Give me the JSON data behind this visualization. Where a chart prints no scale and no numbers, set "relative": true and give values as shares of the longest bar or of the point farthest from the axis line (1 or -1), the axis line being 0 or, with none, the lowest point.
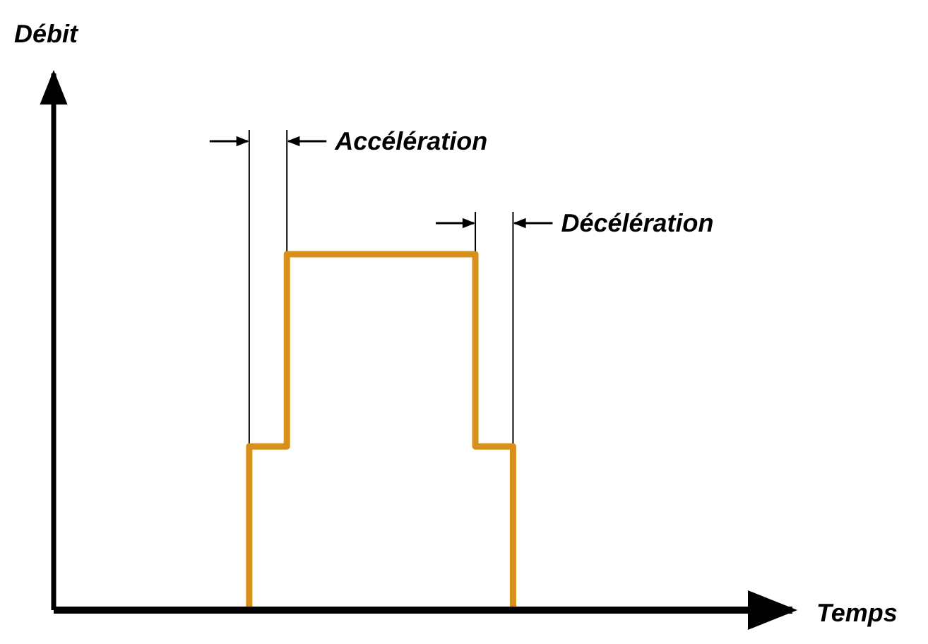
{
  "chart_data": {
    "type": "step",
    "relative": true,
    "xlabel": "Temps",
    "line_style": "solid",
    "categories": [
      null,
      null,
      null,
      null,
      null,
      null,
      null,
      null,
      null,
      null,
      null,
      null,
      null,
      null,
      null,
      null,
      null,
      null,
      null,
      null
    ],
    "series": [
      {
        "color": "#d8901c",
        "values": [
          null,
          null,
          null,
          null,
          0,
          0.46,
          1,
          1,
          1,
          1,
          1,
          0.46,
          0,
          null,
          null,
          null,
          null,
          null,
          null,
          null
        ]
      }
    ],
    "annotations": [
      "Débit",
      "Accélération",
      "Décélération"
    ]
  }
}
